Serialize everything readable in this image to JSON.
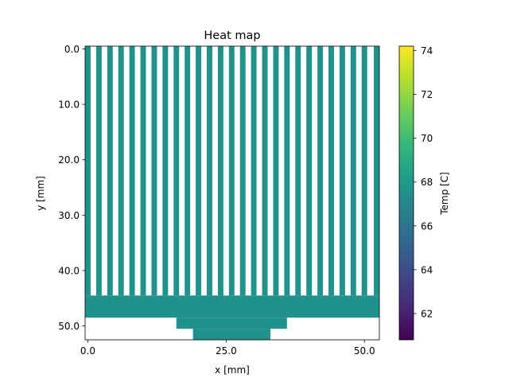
{
  "chart_data": {
    "type": "heatmap",
    "title": "Heat map",
    "xlabel": "x [mm]",
    "ylabel": "y [mm]",
    "xlim": [
      -0.5,
      52.7
    ],
    "ylim": [
      52.5,
      -0.5
    ],
    "xticks": [
      0.0,
      25.0,
      50.0
    ],
    "xtick_labels": [
      "0.0",
      "25.0",
      "50.0"
    ],
    "yticks": [
      0.0,
      10.0,
      20.0,
      30.0,
      40.0,
      50.0
    ],
    "ytick_labels": [
      "0.0",
      "10.0",
      "20.0",
      "30.0",
      "40.0",
      "50.0"
    ],
    "cell_value": 68.0,
    "cell_color": "#21918c",
    "fins": {
      "count": 27,
      "y_range": [
        -0.5,
        44.5
      ],
      "first_x_range": [
        -0.5,
        0.5
      ],
      "pitch": 2.0,
      "last_x_range": [
        51.7,
        52.7
      ]
    },
    "solid_regions": [
      {
        "x_range": [
          -0.5,
          52.7
        ],
        "y_range": [
          44.5,
          48.5
        ]
      },
      {
        "x_range": [
          16.0,
          36.0
        ],
        "y_range": [
          48.5,
          50.5
        ]
      },
      {
        "x_range": [
          19.0,
          33.0
        ],
        "y_range": [
          50.5,
          52.5
        ]
      }
    ],
    "colorbar": {
      "label": "Temp [C]",
      "range": [
        60.8,
        74.2
      ],
      "ticks": [
        62,
        64,
        66,
        68,
        70,
        72,
        74
      ],
      "tick_labels": [
        "62",
        "64",
        "66",
        "68",
        "70",
        "72",
        "74"
      ],
      "colormap": "viridis",
      "colors": [
        "#440154",
        "#482878",
        "#3e4989",
        "#31688e",
        "#26828e",
        "#1f9e89",
        "#35b779",
        "#6ece58",
        "#b5de2b",
        "#fde725"
      ]
    },
    "grid": false
  }
}
